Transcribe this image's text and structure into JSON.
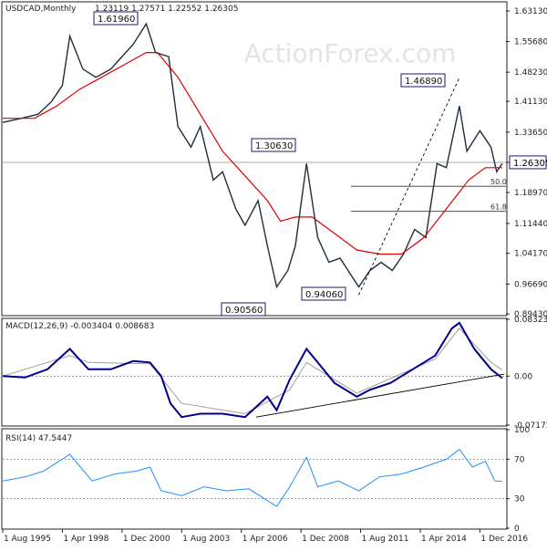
{
  "chart_data": [
    {
      "type": "candlestick",
      "title": "USDCAD,Monthly",
      "ohlc_readout": "1.23119 1.27571 1.22552 1.26305",
      "watermark": "ActionForex.com",
      "ylim": [
        0.8924,
        1.6512
      ],
      "yticks": [
        "1.63130",
        "1.55680",
        "1.48230",
        "1.41130",
        "1.33650",
        "1.26305",
        "1.18970",
        "1.11440",
        "1.04170",
        "0.96690",
        "0.89430"
      ],
      "last_price": "1.26305",
      "x_tick_labels": [
        "1 Aug 1995",
        "1 Apr 1998",
        "1 Dec 2000",
        "1 Aug 2003",
        "1 Apr 2006",
        "1 Dec 2008",
        "1 Aug 2011",
        "1 Apr 2014",
        "1 Dec 2016"
      ],
      "annotations": [
        {
          "label": "1.61960",
          "date": "2002-01",
          "value": 1.6196
        },
        {
          "label": "1.30630",
          "date": "2009-03",
          "value": 1.3063
        },
        {
          "label": "0.90560",
          "date": "2007-11",
          "value": 0.9056
        },
        {
          "label": "0.94060",
          "date": "2011-07",
          "value": 0.9406
        },
        {
          "label": "1.46890",
          "date": "2016-01",
          "value": 1.4689
        }
      ],
      "fibonacci_levels": [
        {
          "label": "50.0",
          "value": 1.2048
        },
        {
          "label": "61.8",
          "value": 1.1438
        }
      ],
      "close_series": [
        {
          "date": "1995-08",
          "value": 1.36
        },
        {
          "date": "1996-06",
          "value": 1.37
        },
        {
          "date": "1997-03",
          "value": 1.38
        },
        {
          "date": "1997-10",
          "value": 1.41
        },
        {
          "date": "1998-04",
          "value": 1.45
        },
        {
          "date": "1998-08",
          "value": 1.57
        },
        {
          "date": "1999-03",
          "value": 1.49
        },
        {
          "date": "1999-10",
          "value": 1.47
        },
        {
          "date": "2000-06",
          "value": 1.49
        },
        {
          "date": "2000-12",
          "value": 1.52
        },
        {
          "date": "2001-06",
          "value": 1.55
        },
        {
          "date": "2002-01",
          "value": 1.6
        },
        {
          "date": "2002-06",
          "value": 1.53
        },
        {
          "date": "2003-01",
          "value": 1.52
        },
        {
          "date": "2003-06",
          "value": 1.35
        },
        {
          "date": "2004-01",
          "value": 1.3
        },
        {
          "date": "2004-06",
          "value": 1.35
        },
        {
          "date": "2005-01",
          "value": 1.22
        },
        {
          "date": "2005-06",
          "value": 1.24
        },
        {
          "date": "2006-01",
          "value": 1.15
        },
        {
          "date": "2006-06",
          "value": 1.11
        },
        {
          "date": "2007-01",
          "value": 1.17
        },
        {
          "date": "2007-06",
          "value": 1.06
        },
        {
          "date": "2007-11",
          "value": 0.96
        },
        {
          "date": "2008-05",
          "value": 1.0
        },
        {
          "date": "2008-09",
          "value": 1.06
        },
        {
          "date": "2009-03",
          "value": 1.26
        },
        {
          "date": "2009-09",
          "value": 1.08
        },
        {
          "date": "2010-03",
          "value": 1.02
        },
        {
          "date": "2010-09",
          "value": 1.03
        },
        {
          "date": "2011-07",
          "value": 0.96
        },
        {
          "date": "2012-01",
          "value": 1.0
        },
        {
          "date": "2012-07",
          "value": 1.02
        },
        {
          "date": "2013-01",
          "value": 1.0
        },
        {
          "date": "2013-07",
          "value": 1.04
        },
        {
          "date": "2014-01",
          "value": 1.1
        },
        {
          "date": "2014-07",
          "value": 1.08
        },
        {
          "date": "2015-01",
          "value": 1.26
        },
        {
          "date": "2015-06",
          "value": 1.25
        },
        {
          "date": "2016-01",
          "value": 1.4
        },
        {
          "date": "2016-05",
          "value": 1.29
        },
        {
          "date": "2016-12",
          "value": 1.34
        },
        {
          "date": "2017-06",
          "value": 1.3
        },
        {
          "date": "2017-09",
          "value": 1.24
        },
        {
          "date": "2017-12",
          "value": 1.26
        }
      ],
      "ma_series": [
        {
          "date": "1995-08",
          "value": 1.37
        },
        {
          "date": "1997-01",
          "value": 1.37
        },
        {
          "date": "1998-01",
          "value": 1.4
        },
        {
          "date": "1999-01",
          "value": 1.44
        },
        {
          "date": "2000-01",
          "value": 1.47
        },
        {
          "date": "2001-01",
          "value": 1.5
        },
        {
          "date": "2002-01",
          "value": 1.53
        },
        {
          "date": "2002-07",
          "value": 1.53
        },
        {
          "date": "2003-06",
          "value": 1.47
        },
        {
          "date": "2004-06",
          "value": 1.38
        },
        {
          "date": "2005-06",
          "value": 1.29
        },
        {
          "date": "2006-06",
          "value": 1.23
        },
        {
          "date": "2007-06",
          "value": 1.17
        },
        {
          "date": "2008-01",
          "value": 1.12
        },
        {
          "date": "2008-09",
          "value": 1.13
        },
        {
          "date": "2009-06",
          "value": 1.13
        },
        {
          "date": "2010-06",
          "value": 1.09
        },
        {
          "date": "2011-06",
          "value": 1.05
        },
        {
          "date": "2012-06",
          "value": 1.04
        },
        {
          "date": "2013-06",
          "value": 1.04
        },
        {
          "date": "2014-06",
          "value": 1.08
        },
        {
          "date": "2015-06",
          "value": 1.15
        },
        {
          "date": "2016-06",
          "value": 1.22
        },
        {
          "date": "2017-03",
          "value": 1.25
        },
        {
          "date": "2017-12",
          "value": 1.25
        }
      ],
      "trendline": [
        {
          "date": "2011-07",
          "value": 0.9406
        },
        {
          "date": "2016-01",
          "value": 1.4689
        }
      ],
      "colors": {
        "price": "#1f2e3a",
        "ma": "#e00000",
        "trendline": "#000000",
        "tag_border": "#1a1a6e"
      }
    },
    {
      "type": "line",
      "title": "MACD(12,26,9) -0.003404 0.008683",
      "ylim": [
        -0.07175,
        0.08324
      ],
      "yticks": [
        "0.083235",
        "0.00",
        "-0.071752"
      ],
      "macd_series": [
        {
          "date": "1995-08",
          "value": 0.0
        },
        {
          "date": "1996-08",
          "value": -0.002
        },
        {
          "date": "1997-08",
          "value": 0.01
        },
        {
          "date": "1998-08",
          "value": 0.04
        },
        {
          "date": "1999-06",
          "value": 0.01
        },
        {
          "date": "2000-06",
          "value": 0.01
        },
        {
          "date": "2001-06",
          "value": 0.022
        },
        {
          "date": "2002-03",
          "value": 0.02
        },
        {
          "date": "2002-09",
          "value": 0.0
        },
        {
          "date": "2003-02",
          "value": -0.04
        },
        {
          "date": "2003-08",
          "value": -0.06
        },
        {
          "date": "2004-06",
          "value": -0.055
        },
        {
          "date": "2005-06",
          "value": -0.055
        },
        {
          "date": "2006-06",
          "value": -0.06
        },
        {
          "date": "2007-06",
          "value": -0.03
        },
        {
          "date": "2007-11",
          "value": -0.05
        },
        {
          "date": "2008-06",
          "value": -0.005
        },
        {
          "date": "2009-03",
          "value": 0.04
        },
        {
          "date": "2009-09",
          "value": 0.02
        },
        {
          "date": "2010-06",
          "value": -0.01
        },
        {
          "date": "2011-06",
          "value": -0.03
        },
        {
          "date": "2012-01",
          "value": -0.02
        },
        {
          "date": "2012-12",
          "value": -0.01
        },
        {
          "date": "2013-12",
          "value": 0.01
        },
        {
          "date": "2014-12",
          "value": 0.03
        },
        {
          "date": "2015-09",
          "value": 0.07
        },
        {
          "date": "2016-01",
          "value": 0.078
        },
        {
          "date": "2016-09",
          "value": 0.04
        },
        {
          "date": "2017-06",
          "value": 0.01
        },
        {
          "date": "2017-12",
          "value": -0.003
        }
      ],
      "signal_series": [
        {
          "date": "1995-08",
          "value": 0.0
        },
        {
          "date": "1998-08",
          "value": 0.03
        },
        {
          "date": "1999-06",
          "value": 0.02
        },
        {
          "date": "2002-03",
          "value": 0.018
        },
        {
          "date": "2003-08",
          "value": -0.04
        },
        {
          "date": "2006-06",
          "value": -0.055
        },
        {
          "date": "2008-06",
          "value": -0.02
        },
        {
          "date": "2009-03",
          "value": 0.02
        },
        {
          "date": "2011-06",
          "value": -0.025
        },
        {
          "date": "2014-12",
          "value": 0.025
        },
        {
          "date": "2016-01",
          "value": 0.07
        },
        {
          "date": "2017-06",
          "value": 0.02
        },
        {
          "date": "2017-12",
          "value": 0.009
        }
      ],
      "trendline": [
        {
          "date": "2006-12",
          "value": -0.06
        },
        {
          "date": "2018-01",
          "value": 0.003
        }
      ],
      "colors": {
        "macd": "#00008b",
        "signal": "#9e9e9e",
        "zero": "#888888",
        "trendline": "#000000"
      }
    },
    {
      "type": "line",
      "title": "RSI(14) 47.5447",
      "ylim": [
        0,
        100
      ],
      "yticks": [
        "100",
        "70",
        "30",
        "0"
      ],
      "rsi_series": [
        {
          "date": "1995-08",
          "value": 48
        },
        {
          "date": "1996-08",
          "value": 52
        },
        {
          "date": "1997-06",
          "value": 58
        },
        {
          "date": "1998-08",
          "value": 75
        },
        {
          "date": "1999-08",
          "value": 48
        },
        {
          "date": "2000-08",
          "value": 55
        },
        {
          "date": "2001-08",
          "value": 58
        },
        {
          "date": "2002-03",
          "value": 62
        },
        {
          "date": "2002-09",
          "value": 38
        },
        {
          "date": "2003-08",
          "value": 33
        },
        {
          "date": "2004-08",
          "value": 42
        },
        {
          "date": "2005-08",
          "value": 38
        },
        {
          "date": "2006-08",
          "value": 40
        },
        {
          "date": "2007-11",
          "value": 22
        },
        {
          "date": "2008-06",
          "value": 42
        },
        {
          "date": "2009-03",
          "value": 72
        },
        {
          "date": "2009-09",
          "value": 42
        },
        {
          "date": "2010-08",
          "value": 48
        },
        {
          "date": "2011-07",
          "value": 38
        },
        {
          "date": "2012-06",
          "value": 52
        },
        {
          "date": "2013-06",
          "value": 55
        },
        {
          "date": "2014-06",
          "value": 62
        },
        {
          "date": "2015-06",
          "value": 70
        },
        {
          "date": "2016-01",
          "value": 80
        },
        {
          "date": "2016-08",
          "value": 62
        },
        {
          "date": "2017-03",
          "value": 68
        },
        {
          "date": "2017-08",
          "value": 48
        },
        {
          "date": "2017-12",
          "value": 47.5
        }
      ],
      "levels": [
        70,
        30
      ],
      "colors": {
        "rsi": "#1e90ff",
        "level": "#888888"
      }
    }
  ]
}
